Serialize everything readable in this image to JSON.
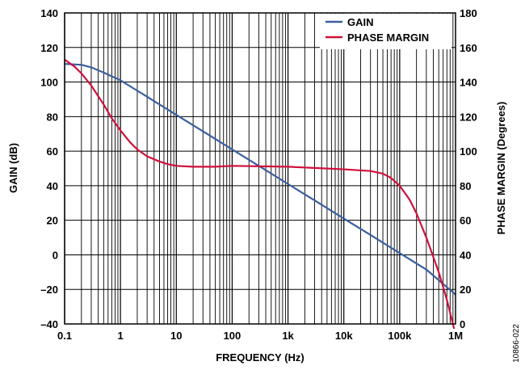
{
  "chart_data": {
    "type": "line",
    "x_scale": "log",
    "xlabel": "FREQUENCY (Hz)",
    "ylabel_left": "GAIN (dB)",
    "ylabel_right": "PHASE MARGIN (Degrees)",
    "xlim": [
      0.1,
      1000000
    ],
    "ylim_left": [
      -40,
      140
    ],
    "ylim_right": [
      0,
      180
    ],
    "grid": true,
    "legend_position": "top-right",
    "x_ticks": [
      {
        "value": 0.1,
        "label": "0.1"
      },
      {
        "value": 1,
        "label": "1"
      },
      {
        "value": 10,
        "label": "10"
      },
      {
        "value": 100,
        "label": "100"
      },
      {
        "value": 1000,
        "label": "1k"
      },
      {
        "value": 10000,
        "label": "10k"
      },
      {
        "value": 100000,
        "label": "100k"
      },
      {
        "value": 1000000,
        "label": "1M"
      }
    ],
    "y_ticks_left": [
      {
        "value": 140,
        "label": "140"
      },
      {
        "value": 120,
        "label": "120"
      },
      {
        "value": 100,
        "label": "100"
      },
      {
        "value": 80,
        "label": "80"
      },
      {
        "value": 60,
        "label": "60"
      },
      {
        "value": 40,
        "label": "40"
      },
      {
        "value": 20,
        "label": "20"
      },
      {
        "value": 0,
        "label": "0"
      },
      {
        "value": -20,
        "label": "–20"
      },
      {
        "value": -40,
        "label": "–40"
      }
    ],
    "y_ticks_right": [
      {
        "value": 180,
        "label": "180"
      },
      {
        "value": 160,
        "label": "160"
      },
      {
        "value": 140,
        "label": "140"
      },
      {
        "value": 120,
        "label": "120"
      },
      {
        "value": 100,
        "label": "100"
      },
      {
        "value": 80,
        "label": "80"
      },
      {
        "value": 60,
        "label": "60"
      },
      {
        "value": 40,
        "label": "40"
      },
      {
        "value": 20,
        "label": "20"
      },
      {
        "value": 0,
        "label": "0"
      }
    ],
    "series": [
      {
        "name": "GAIN",
        "color": "#3a5f9e",
        "axis": "left",
        "x": [
          0.1,
          0.2,
          0.3,
          0.5,
          0.7,
          1,
          2,
          3,
          5,
          10,
          30,
          100,
          300,
          1000,
          3000,
          10000,
          30000,
          100000,
          300000,
          1000000
        ],
        "y": [
          110.5,
          110,
          108.5,
          105.5,
          103.3,
          101,
          95,
          91.5,
          87,
          81,
          71.5,
          61,
          51.5,
          41,
          31.5,
          21,
          11.5,
          1,
          -8.5,
          -23
        ]
      },
      {
        "name": "PHASE MARGIN",
        "color": "#d0103a",
        "axis": "right",
        "x": [
          0.1,
          0.15,
          0.2,
          0.3,
          0.5,
          0.7,
          1,
          1.5,
          2,
          3,
          5,
          7,
          10,
          20,
          50,
          100,
          1000,
          10000,
          30000,
          50000,
          70000,
          100000,
          150000,
          200000,
          300000,
          500000,
          700000,
          850000,
          1000000
        ],
        "y": [
          153,
          149,
          145,
          138,
          127,
          119,
          112,
          105,
          101,
          97,
          94,
          92.5,
          91.5,
          91,
          91,
          91.5,
          91,
          89.5,
          88.5,
          87,
          84.5,
          80,
          72,
          64,
          50,
          30,
          14,
          3,
          -6
        ]
      }
    ],
    "figure_id": "10866-022"
  }
}
